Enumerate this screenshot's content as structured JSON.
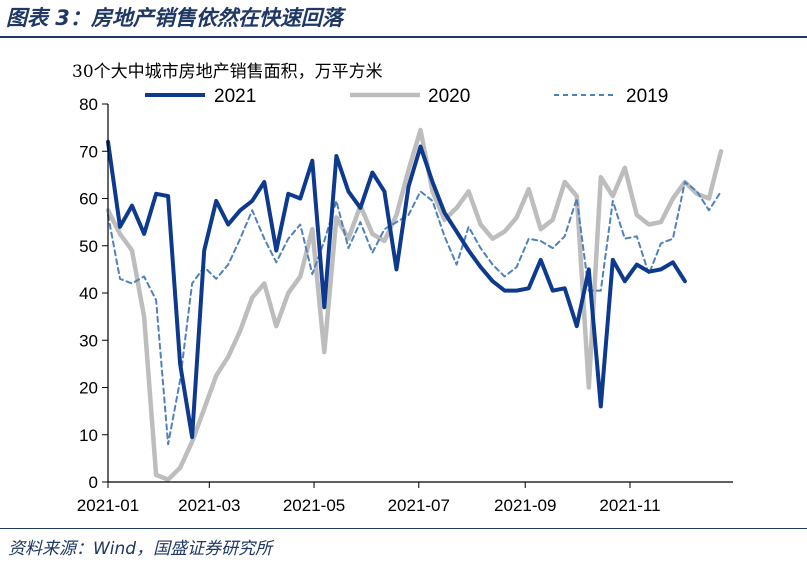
{
  "figure": {
    "title": "图表 3：房地产销售依然在快速回落",
    "source": "资料来源：Wind，国盛证券研究所"
  },
  "chart_data": {
    "type": "line",
    "unit_label": "30个大中城市房地产销售面积，万平方米",
    "ylim": [
      0,
      80
    ],
    "yticks": [
      0,
      10,
      20,
      30,
      40,
      50,
      60,
      70,
      80
    ],
    "xlim": [
      "2021-01-01",
      "2021-12-31"
    ],
    "xticks": [
      "2021-01",
      "2021-03",
      "2021-05",
      "2021-07",
      "2021-09",
      "2021-11"
    ],
    "grid": false,
    "legend": "top",
    "series": [
      {
        "name": "2021",
        "color": "#0d3a8e",
        "style": "solid-thick",
        "points": [
          [
            "2021-01-01",
            72
          ],
          [
            "2021-01-08",
            54
          ],
          [
            "2021-01-15",
            58.5
          ],
          [
            "2021-01-22",
            52.5
          ],
          [
            "2021-01-29",
            61
          ],
          [
            "2021-02-05",
            60.5
          ],
          [
            "2021-02-12",
            25
          ],
          [
            "2021-02-19",
            9.5
          ],
          [
            "2021-02-26",
            49
          ],
          [
            "2021-03-05",
            59.5
          ],
          [
            "2021-03-12",
            54.5
          ],
          [
            "2021-03-19",
            57.5
          ],
          [
            "2021-03-26",
            59.5
          ],
          [
            "2021-04-02",
            63.5
          ],
          [
            "2021-04-09",
            49
          ],
          [
            "2021-04-16",
            61
          ],
          [
            "2021-04-23",
            60
          ],
          [
            "2021-04-30",
            68
          ],
          [
            "2021-05-07",
            37
          ],
          [
            "2021-05-14",
            69
          ],
          [
            "2021-05-21",
            61.5
          ],
          [
            "2021-05-28",
            58
          ],
          [
            "2021-06-04",
            65.5
          ],
          [
            "2021-06-11",
            61.5
          ],
          [
            "2021-06-18",
            45
          ],
          [
            "2021-06-25",
            62.5
          ],
          [
            "2021-07-02",
            71
          ],
          [
            "2021-07-09",
            63.5
          ],
          [
            "2021-07-16",
            57
          ],
          [
            "2021-07-23",
            53
          ],
          [
            "2021-07-30",
            49
          ],
          [
            "2021-08-06",
            45.5
          ],
          [
            "2021-08-13",
            42.5
          ],
          [
            "2021-08-20",
            40.5
          ],
          [
            "2021-08-27",
            40.5
          ],
          [
            "2021-09-03",
            41
          ],
          [
            "2021-09-10",
            47
          ],
          [
            "2021-09-17",
            40.5
          ],
          [
            "2021-09-24",
            41
          ],
          [
            "2021-10-01",
            33
          ],
          [
            "2021-10-08",
            45
          ],
          [
            "2021-10-15",
            16
          ],
          [
            "2021-10-22",
            47
          ],
          [
            "2021-10-29",
            42.5
          ],
          [
            "2021-11-05",
            46
          ],
          [
            "2021-11-12",
            44.5
          ],
          [
            "2021-11-19",
            45
          ],
          [
            "2021-11-26",
            46.5
          ],
          [
            "2021-12-03",
            42.5
          ]
        ]
      },
      {
        "name": "2020",
        "color": "#bdbdbd",
        "style": "solid-thick",
        "points": [
          [
            "2021-01-01",
            57.5
          ],
          [
            "2021-01-08",
            52.5
          ],
          [
            "2021-01-15",
            49
          ],
          [
            "2021-01-22",
            35
          ],
          [
            "2021-01-29",
            1.5
          ],
          [
            "2021-02-05",
            0.5
          ],
          [
            "2021-02-12",
            3
          ],
          [
            "2021-02-19",
            8.5
          ],
          [
            "2021-02-26",
            15.5
          ],
          [
            "2021-03-05",
            22.5
          ],
          [
            "2021-03-12",
            26.5
          ],
          [
            "2021-03-19",
            32
          ],
          [
            "2021-03-26",
            39
          ],
          [
            "2021-04-02",
            42
          ],
          [
            "2021-04-09",
            33
          ],
          [
            "2021-04-16",
            40
          ],
          [
            "2021-04-23",
            43.5
          ],
          [
            "2021-04-30",
            53.5
          ],
          [
            "2021-05-07",
            27.5
          ],
          [
            "2021-05-14",
            56
          ],
          [
            "2021-05-21",
            51.5
          ],
          [
            "2021-05-28",
            58.5
          ],
          [
            "2021-06-04",
            52.5
          ],
          [
            "2021-06-11",
            51
          ],
          [
            "2021-06-18",
            56.5
          ],
          [
            "2021-06-25",
            66
          ],
          [
            "2021-07-02",
            74.5
          ],
          [
            "2021-07-09",
            61.5
          ],
          [
            "2021-07-16",
            55.5
          ],
          [
            "2021-07-23",
            58
          ],
          [
            "2021-07-30",
            61.5
          ],
          [
            "2021-08-06",
            54.5
          ],
          [
            "2021-08-13",
            51.5
          ],
          [
            "2021-08-20",
            53
          ],
          [
            "2021-08-27",
            56
          ],
          [
            "2021-09-03",
            62
          ],
          [
            "2021-09-10",
            53.5
          ],
          [
            "2021-09-17",
            55.5
          ],
          [
            "2021-09-24",
            63.5
          ],
          [
            "2021-10-01",
            60.5
          ],
          [
            "2021-10-08",
            20
          ],
          [
            "2021-10-15",
            64.5
          ],
          [
            "2021-10-22",
            60.5
          ],
          [
            "2021-10-29",
            66.5
          ],
          [
            "2021-11-05",
            56.5
          ],
          [
            "2021-11-12",
            54.5
          ],
          [
            "2021-11-19",
            55
          ],
          [
            "2021-11-26",
            60
          ],
          [
            "2021-12-03",
            63.5
          ],
          [
            "2021-12-10",
            61
          ],
          [
            "2021-12-17",
            60
          ],
          [
            "2021-12-24",
            70
          ]
        ]
      },
      {
        "name": "2019",
        "color": "#4f81bd",
        "style": "dashed",
        "points": [
          [
            "2021-01-01",
            56.5
          ],
          [
            "2021-01-08",
            43
          ],
          [
            "2021-01-15",
            42
          ],
          [
            "2021-01-22",
            43.5
          ],
          [
            "2021-01-29",
            38.5
          ],
          [
            "2021-02-05",
            8
          ],
          [
            "2021-02-12",
            21.5
          ],
          [
            "2021-02-19",
            42
          ],
          [
            "2021-02-26",
            45.5
          ],
          [
            "2021-03-05",
            43
          ],
          [
            "2021-03-12",
            46
          ],
          [
            "2021-03-19",
            51.5
          ],
          [
            "2021-03-26",
            57.5
          ],
          [
            "2021-04-02",
            51.5
          ],
          [
            "2021-04-09",
            46.5
          ],
          [
            "2021-04-16",
            51.5
          ],
          [
            "2021-04-23",
            54.5
          ],
          [
            "2021-04-30",
            44
          ],
          [
            "2021-05-07",
            51
          ],
          [
            "2021-05-14",
            59.5
          ],
          [
            "2021-05-21",
            49.5
          ],
          [
            "2021-05-28",
            55
          ],
          [
            "2021-06-04",
            48.5
          ],
          [
            "2021-06-11",
            53.5
          ],
          [
            "2021-06-18",
            55
          ],
          [
            "2021-06-25",
            56.5
          ],
          [
            "2021-07-02",
            61.5
          ],
          [
            "2021-07-09",
            59.5
          ],
          [
            "2021-07-16",
            52
          ],
          [
            "2021-07-23",
            46
          ],
          [
            "2021-07-30",
            54
          ],
          [
            "2021-08-06",
            49.5
          ],
          [
            "2021-08-13",
            46
          ],
          [
            "2021-08-20",
            43.5
          ],
          [
            "2021-08-27",
            45.5
          ],
          [
            "2021-09-03",
            51.5
          ],
          [
            "2021-09-10",
            51
          ],
          [
            "2021-09-17",
            49.5
          ],
          [
            "2021-09-24",
            52
          ],
          [
            "2021-10-01",
            60
          ],
          [
            "2021-10-08",
            40.5
          ],
          [
            "2021-10-15",
            40.5
          ],
          [
            "2021-10-22",
            59.5
          ],
          [
            "2021-10-29",
            51.5
          ],
          [
            "2021-11-05",
            52
          ],
          [
            "2021-11-12",
            44
          ],
          [
            "2021-11-19",
            50.5
          ],
          [
            "2021-11-26",
            51.5
          ],
          [
            "2021-12-03",
            63.5
          ],
          [
            "2021-12-10",
            61.5
          ],
          [
            "2021-12-17",
            57.5
          ],
          [
            "2021-12-24",
            61.5
          ]
        ]
      }
    ]
  }
}
